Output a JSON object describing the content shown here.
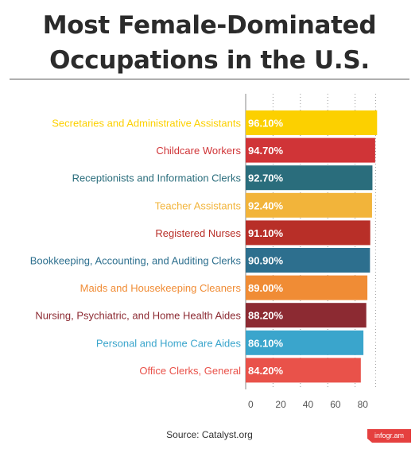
{
  "title_line1": "Most Female-Dominated",
  "title_line2": "Occupations in the U.S.",
  "source": "Source: Catalyst.org",
  "brand": "infogr.am",
  "chart_data": {
    "type": "bar",
    "orientation": "horizontal",
    "title": "Most Female-Dominated Occupations in the U.S.",
    "categories": [
      "Secretaries and Administrative Assistants",
      "Childcare Workers",
      "Receptionists and Information Clerks",
      "Teacher Assistants",
      "Registered Nurses",
      "Bookkeeping, Accounting, and Auditing Clerks",
      "Maids and Housekeeping Cleaners",
      "Nursing, Psychiatric, and Home Health Aides",
      "Personal and Home Care Aides",
      "Office Clerks, General"
    ],
    "values": [
      96.1,
      94.7,
      92.7,
      92.4,
      91.1,
      90.9,
      89.0,
      88.2,
      86.1,
      84.2
    ],
    "value_labels": [
      "96.10%",
      "94.70%",
      "92.70%",
      "92.40%",
      "91.10%",
      "90.90%",
      "89.00%",
      "88.20%",
      "86.10%",
      "84.20%"
    ],
    "colors": [
      "#fcd000",
      "#d03437",
      "#2a6d7c",
      "#f2b43a",
      "#b82f28",
      "#2d6f8e",
      "#f08c35",
      "#8c2a32",
      "#3aa5cc",
      "#e9524a"
    ],
    "xticks": [
      0,
      20,
      40,
      60,
      80
    ],
    "xlim": [
      0,
      95
    ],
    "grid": true,
    "legend": "none",
    "xlabel": "",
    "ylabel": ""
  }
}
